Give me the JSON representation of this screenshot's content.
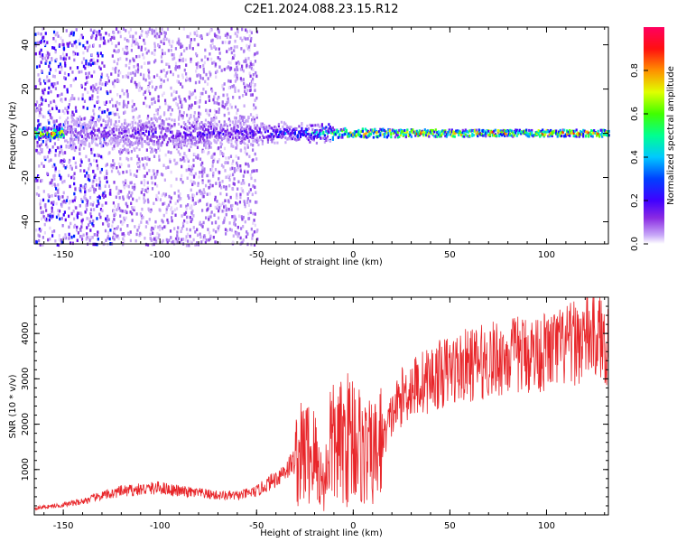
{
  "title": "C2E1.2024.088.23.15.R12",
  "colors": {
    "snr_line": "#e8262a",
    "spectrogram_scale": [
      "#ffffff",
      "#c8a8f8",
      "#8a2be2",
      "#5a00ff",
      "#0000ff",
      "#00c8ff",
      "#00ff80",
      "#80ff00",
      "#ffff00",
      "#ff8000",
      "#ff0000",
      "#ff0090"
    ]
  },
  "chart_data": [
    {
      "type": "heatmap",
      "xlabel": "Height of straight line (km)",
      "ylabel": "Frequency (Hz)",
      "xlim": [
        -165,
        132
      ],
      "ylim": [
        -50,
        48
      ],
      "xticks": [
        -150,
        -100,
        -50,
        0,
        50,
        100
      ],
      "yticks": [
        -40,
        -20,
        0,
        20,
        40
      ],
      "colorbar": {
        "label": "Normalized spectral amplitude",
        "range": [
          0.0,
          1.0
        ],
        "ticks": [
          0.0,
          0.2,
          0.4,
          0.6,
          0.8
        ]
      },
      "description_values": {
        "broadband_noise_region_km": [
          -165,
          -50
        ],
        "main_band_center_hz": 0,
        "main_band_halfwidth_hz": [
          {
            "x": -150,
            "hz": 6,
            "amp": 0.25
          },
          {
            "x": -100,
            "hz": 6,
            "amp": 0.35
          },
          {
            "x": -50,
            "hz": 4,
            "amp": 0.4
          },
          {
            "x": -30,
            "hz": 3,
            "amp": 0.5
          },
          {
            "x": 0,
            "hz": 2,
            "amp": 0.85
          },
          {
            "x": 50,
            "hz": 1.5,
            "amp": 0.9
          },
          {
            "x": 100,
            "hz": 1.5,
            "amp": 0.9
          },
          {
            "x": 130,
            "hz": 1.5,
            "amp": 0.9
          }
        ]
      }
    },
    {
      "type": "line",
      "xlabel": "Height of straight line (km)",
      "ylabel": "SNR (10 * v/v)",
      "xlim": [
        -165,
        132
      ],
      "ylim": [
        0,
        4800
      ],
      "xticks": [
        -150,
        -100,
        -50,
        0,
        50,
        100
      ],
      "yticks": [
        1000,
        2000,
        3000,
        4000
      ],
      "series": [
        {
          "x": [
            -165,
            -150,
            -140,
            -130,
            -120,
            -110,
            -100,
            -90,
            -80,
            -70,
            -60,
            -50,
            -40,
            -30,
            -25,
            -20,
            -15,
            -12,
            -10,
            -5,
            0,
            5,
            10,
            15,
            20,
            25,
            30,
            40,
            50,
            60,
            70,
            80,
            90,
            100,
            110,
            120,
            125,
            130
          ],
          "values": [
            150,
            220,
            300,
            420,
            520,
            560,
            600,
            520,
            480,
            430,
            420,
            520,
            800,
            1200,
            1400,
            1300,
            600,
            1700,
            1500,
            1600,
            1800,
            1400,
            1300,
            1600,
            2200,
            2600,
            2800,
            3000,
            3200,
            3300,
            3400,
            3500,
            3550,
            3600,
            3700,
            3900,
            4000,
            3800
          ]
        }
      ]
    }
  ]
}
